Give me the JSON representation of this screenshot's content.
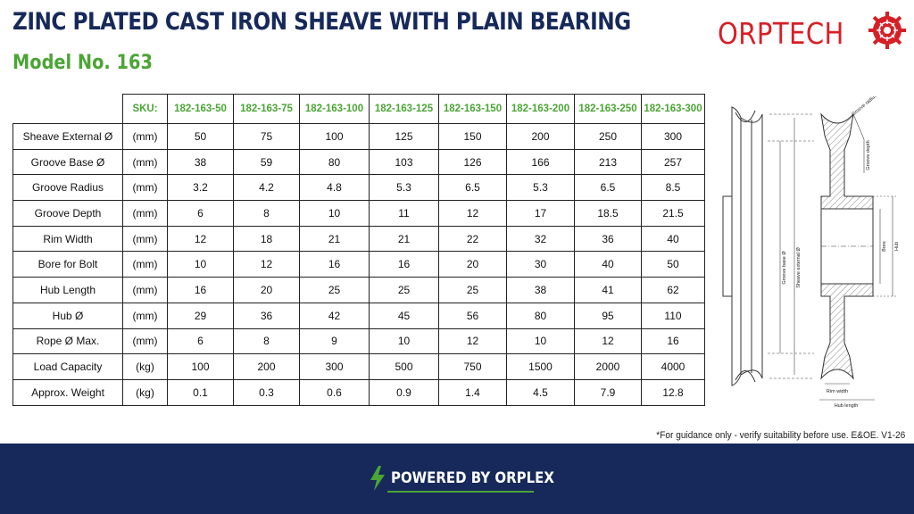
{
  "header": {
    "title": "ZINC PLATED CAST IRON SHEAVE WITH PLAIN BEARING",
    "subtitle": "Model No. 163",
    "logo_text": "ORPTECH",
    "colors": {
      "navy": "#16295a",
      "green": "#4aa534",
      "logo_red": "#d71f26"
    }
  },
  "table": {
    "sku_label": "SKU:",
    "skus": [
      "182-163-50",
      "182-163-75",
      "182-163-100",
      "182-163-125",
      "182-163-150",
      "182-163-200",
      "182-163-250",
      "182-163-300"
    ],
    "rows": [
      {
        "label": "Sheave External Ø",
        "unit": "(mm)",
        "values": [
          "50",
          "75",
          "100",
          "125",
          "150",
          "200",
          "250",
          "300"
        ]
      },
      {
        "label": "Groove Base Ø",
        "unit": "(mm)",
        "values": [
          "38",
          "59",
          "80",
          "103",
          "126",
          "166",
          "213",
          "257"
        ]
      },
      {
        "label": "Groove Radius",
        "unit": "(mm)",
        "values": [
          "3.2",
          "4.2",
          "4.8",
          "5.3",
          "6.5",
          "5.3",
          "6.5",
          "8.5"
        ]
      },
      {
        "label": "Groove Depth",
        "unit": "(mm)",
        "values": [
          "6",
          "8",
          "10",
          "11",
          "12",
          "17",
          "18.5",
          "21.5"
        ]
      },
      {
        "label": "Rim Width",
        "unit": "(mm)",
        "values": [
          "12",
          "18",
          "21",
          "21",
          "22",
          "32",
          "36",
          "40"
        ]
      },
      {
        "label": "Bore for Bolt",
        "unit": "(mm)",
        "values": [
          "10",
          "12",
          "16",
          "16",
          "20",
          "30",
          "40",
          "50"
        ]
      },
      {
        "label": "Hub Length",
        "unit": "(mm)",
        "values": [
          "16",
          "20",
          "25",
          "25",
          "25",
          "38",
          "41",
          "62"
        ]
      },
      {
        "label": "Hub Ø",
        "unit": "(mm)",
        "values": [
          "29",
          "36",
          "42",
          "45",
          "56",
          "80",
          "95",
          "110"
        ]
      },
      {
        "label": "Rope Ø Max.",
        "unit": "(mm)",
        "values": [
          "6",
          "8",
          "9",
          "10",
          "12",
          "10",
          "12",
          "16"
        ]
      },
      {
        "label": "Load Capacity",
        "unit": "(kg)",
        "values": [
          "100",
          "200",
          "300",
          "500",
          "750",
          "1500",
          "2000",
          "4000"
        ]
      },
      {
        "label": "Approx. Weight",
        "unit": "(kg)",
        "values": [
          "0.1",
          "0.3",
          "0.6",
          "0.9",
          "1.4",
          "4.5",
          "7.9",
          "12.8"
        ]
      }
    ]
  },
  "diagram": {
    "labels": {
      "groove_radius": "Groove radius",
      "groove_depth": "Groove depth",
      "groove_base": "Groove base Ø",
      "sheave_external": "Sheave external Ø",
      "bore": "Bore",
      "hub": "Hub",
      "rim_width": "Rim width",
      "hub_length": "Hub length"
    }
  },
  "footnote": "*For guidance only - verify suitability before use. E&OE.  V1-26",
  "footer": {
    "powered_by": "POWERED BY ORPLEX",
    "icon": "lightning-bolt-icon"
  }
}
